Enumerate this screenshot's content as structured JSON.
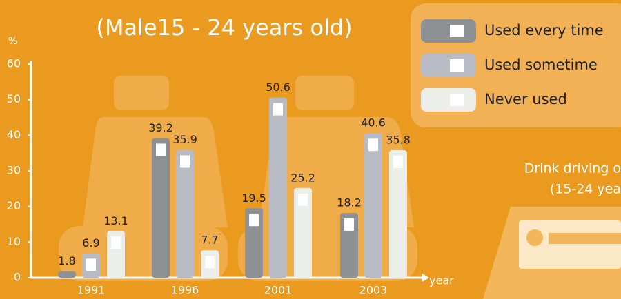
{
  "chart_data": {
    "type": "bar",
    "title": "(Male15 - 24 years old)",
    "y_label": "%",
    "x_label": "year",
    "annotations": [
      "Drink driving o",
      "(15-24 yea"
    ],
    "categories": [
      "1991",
      "1996",
      "2001",
      "2003"
    ],
    "series": [
      {
        "name": "Used every time",
        "color": "#8e9193",
        "values": [
          1.8,
          39.2,
          19.5,
          18.2
        ]
      },
      {
        "name": "Used sometime",
        "color": "#b8bbc3",
        "values": [
          6.9,
          35.9,
          50.6,
          40.6
        ]
      },
      {
        "name": "Never used",
        "color": "#eceeea",
        "values": [
          13.1,
          7.7,
          25.2,
          35.8
        ]
      }
    ],
    "ylim": [
      0,
      60
    ],
    "yticks": [
      0,
      10,
      20,
      30,
      40,
      50,
      60
    ],
    "legend": "top-right"
  }
}
